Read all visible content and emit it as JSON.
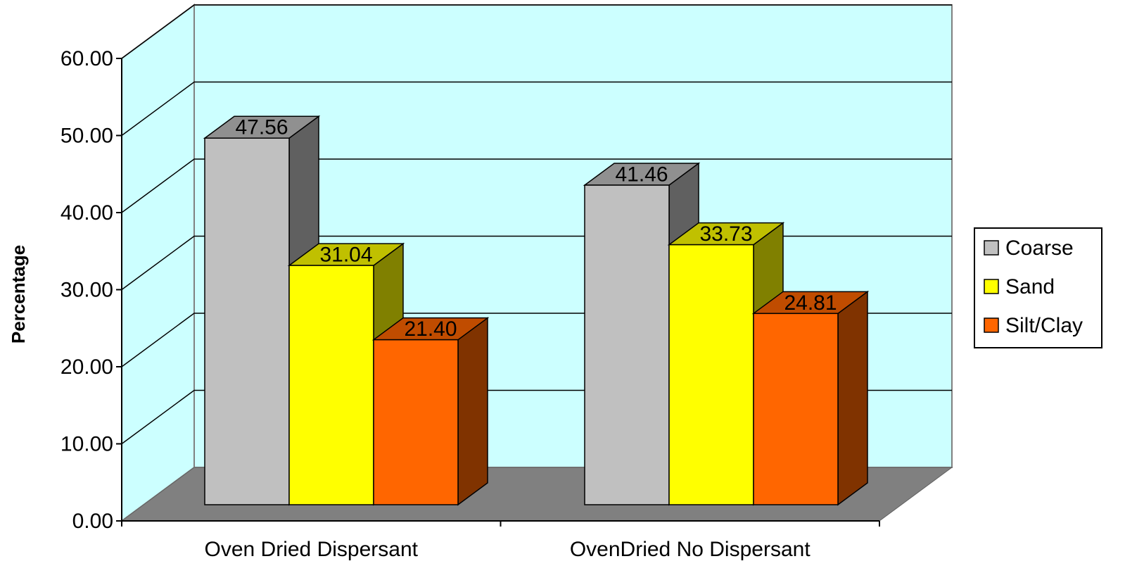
{
  "chart_data": {
    "type": "bar",
    "title": "",
    "xlabel": "",
    "ylabel": "Percentage",
    "ylim": [
      0,
      60
    ],
    "y_ticks": [
      "0.00",
      "10.00",
      "20.00",
      "30.00",
      "40.00",
      "50.00",
      "60.00"
    ],
    "categories": [
      "Oven Dried Dispersant",
      "OvenDried No Dispersant"
    ],
    "series": [
      {
        "name": "Coarse",
        "values": [
          47.56,
          41.46
        ],
        "labels": [
          "47.56",
          "41.46"
        ],
        "color": "#c0c0c0",
        "side_color": "#606060",
        "top_color": "#909090"
      },
      {
        "name": "Sand",
        "values": [
          31.04,
          33.73
        ],
        "labels": [
          "31.04",
          "33.73"
        ],
        "color": "#ffff00",
        "side_color": "#808000",
        "top_color": "#c0c000"
      },
      {
        "name": "Silt/Clay",
        "values": [
          21.4,
          24.81
        ],
        "labels": [
          "21.40",
          "24.81"
        ],
        "color": "#ff6600",
        "side_color": "#803300",
        "top_color": "#c04c00"
      }
    ],
    "grid": true,
    "legend_position": "right",
    "style": "3d-clustered",
    "colors": {
      "wall": "#ccffff",
      "floor": "#808080",
      "gridline": "#000000"
    }
  }
}
